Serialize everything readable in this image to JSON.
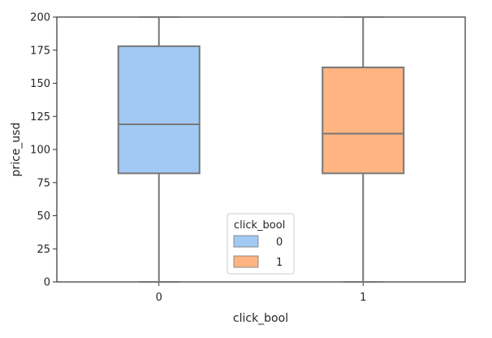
{
  "chart_data": {
    "type": "box",
    "title": "",
    "xlabel": "click_bool",
    "ylabel": "price_usd",
    "ylim": [
      0,
      200
    ],
    "yticks": [
      0,
      25,
      50,
      75,
      100,
      125,
      150,
      175,
      200
    ],
    "grid": false,
    "categories": [
      "0",
      "1"
    ],
    "series": [
      {
        "name": "0",
        "color": "#a1c9f4",
        "box": {
          "whisker_low": 0,
          "q1": 82,
          "median": 119,
          "q3": 178,
          "whisker_high": 200
        }
      },
      {
        "name": "1",
        "color": "#ffb482",
        "box": {
          "whisker_low": 0,
          "q1": 82,
          "median": 112,
          "q3": 162,
          "whisker_high": 200
        }
      }
    ],
    "legend": {
      "title": "click_bool",
      "placement": "lower-center",
      "entries": [
        "0",
        "1"
      ]
    }
  }
}
